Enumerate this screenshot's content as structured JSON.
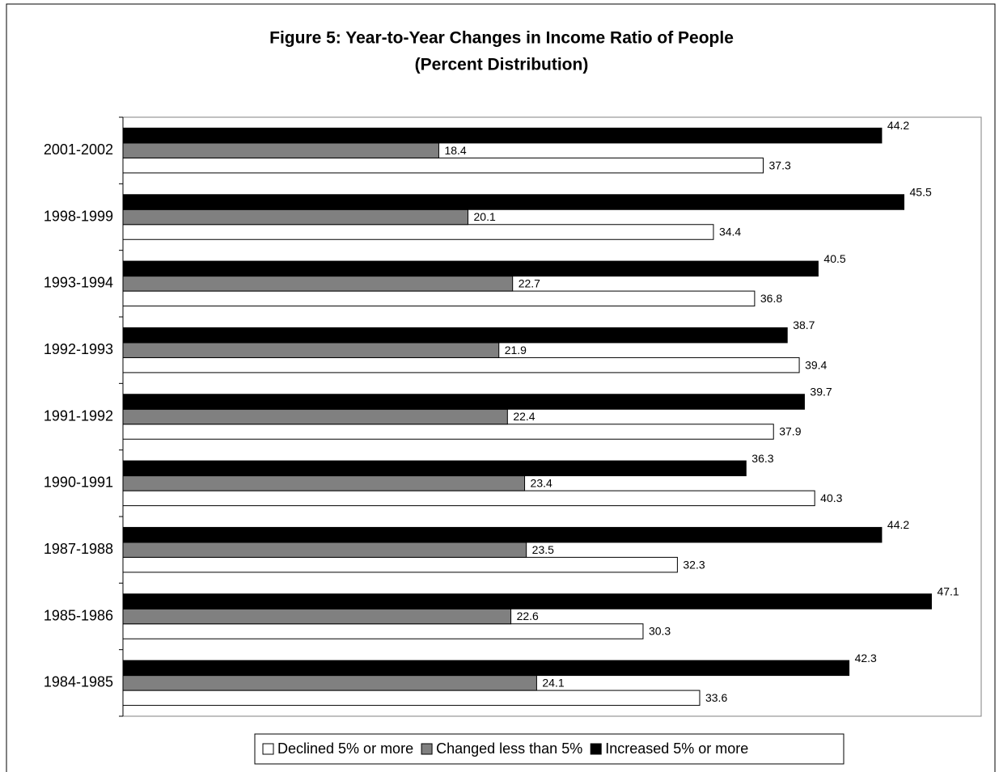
{
  "chart_data": {
    "type": "bar",
    "orientation": "horizontal",
    "title": "Figure 5: Year-to-Year Changes in Income Ratio of People",
    "subtitle": "(Percent Distribution)",
    "categories": [
      "2001-2002",
      "1998-1999",
      "1993-1994",
      "1992-1993",
      "1991-1992",
      "1990-1991",
      "1987-1988",
      "1985-1986",
      "1984-1985"
    ],
    "series": [
      {
        "name": "Declined 5% or more",
        "color": "#ffffff",
        "values": [
          37.3,
          34.4,
          36.8,
          39.4,
          37.9,
          40.3,
          32.3,
          30.3,
          33.6
        ]
      },
      {
        "name": "Changed less than 5%",
        "color": "#808080",
        "values": [
          18.4,
          20.1,
          22.7,
          21.9,
          22.4,
          23.4,
          23.5,
          22.6,
          24.1
        ]
      },
      {
        "name": "Increased 5% or more",
        "color": "#000000",
        "values": [
          44.2,
          45.5,
          40.5,
          38.7,
          39.7,
          36.3,
          44.2,
          47.1,
          42.3
        ]
      }
    ],
    "xlim": [
      0,
      50
    ],
    "grid": false,
    "legend": "bottom"
  }
}
